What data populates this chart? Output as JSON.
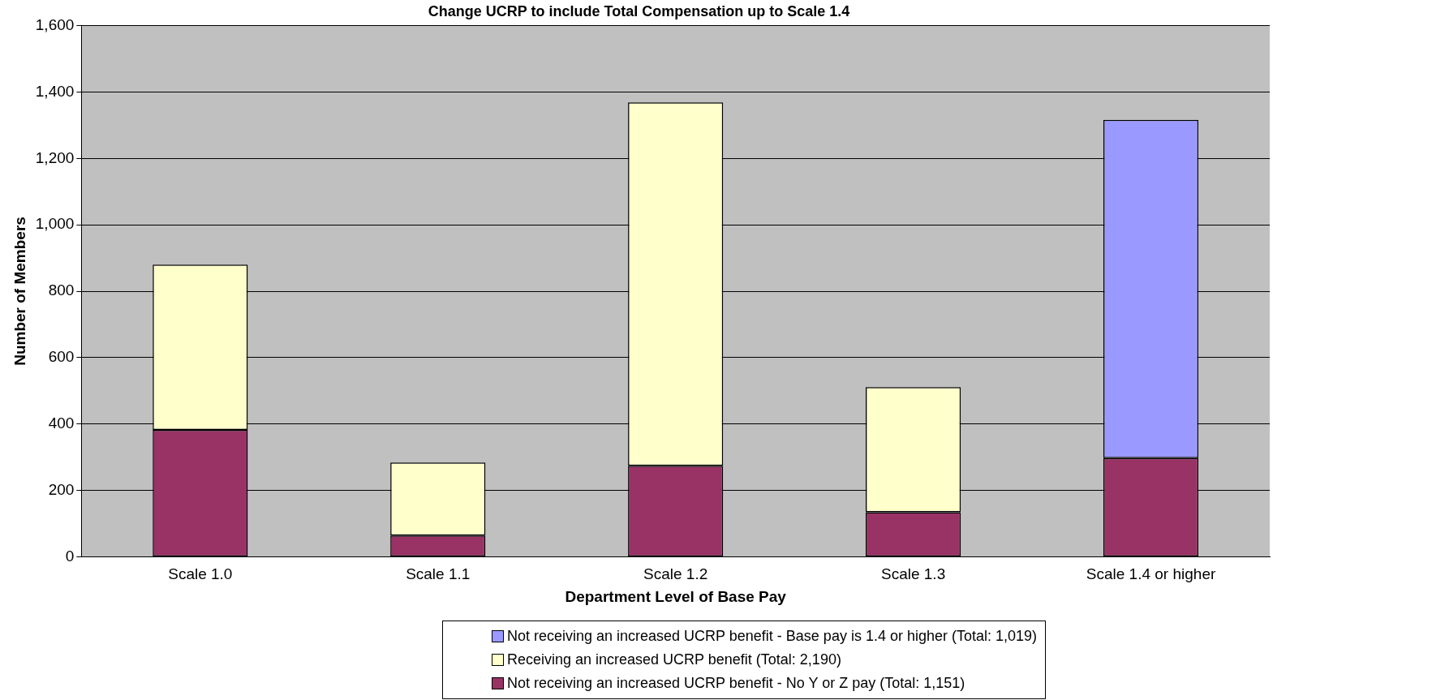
{
  "chart_data": {
    "type": "bar",
    "title": "Change UCRP to include Total Compensation up to Scale 1.4",
    "xlabel": "Department Level of Base Pay",
    "ylabel": "Number of Members",
    "categories": [
      "Scale 1.0",
      "Scale 1.1",
      "Scale 1.2",
      "Scale 1.3",
      "Scale 1.4 or higher"
    ],
    "stacked": true,
    "series": [
      {
        "name": "Not receiving an increased UCRP benefit - No Y or Z pay (Total: 1,151)",
        "color": "#993366",
        "values": [
          382,
          64,
          274,
          134,
          297
        ]
      },
      {
        "name": "Receiving an increased UCRP benefit (Total: 2,190)",
        "color": "#ffffcc",
        "values": [
          498,
          220,
          1095,
          377,
          null
        ]
      },
      {
        "name": "Not receiving an increased UCRP benefit - Base pay is 1.4 or higher (Total: 1,019)",
        "color": "#9999ff",
        "values": [
          null,
          null,
          null,
          null,
          1019
        ]
      }
    ],
    "ylim": [
      0,
      1600
    ],
    "yticks": [
      0,
      {
        "value": 200,
        "label": "200"
      },
      {
        "value": 400,
        "label": "400"
      },
      {
        "value": 600,
        "label": "600"
      },
      {
        "value": 800,
        "label": "800"
      },
      {
        "value": 1000,
        "label": "1,000"
      },
      {
        "value": 1200,
        "label": "1,200"
      },
      {
        "value": 1400,
        "label": "1,400"
      },
      {
        "value": 1600,
        "label": "1,600"
      }
    ],
    "grid": "y",
    "legend": "bottom"
  }
}
